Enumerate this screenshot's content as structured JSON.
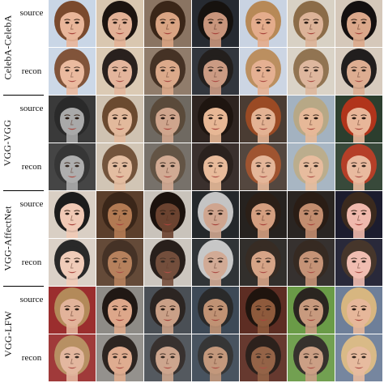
{
  "groups": [
    {
      "label": "CelebA-CelebA",
      "source_label": "source",
      "recon_label": "recon",
      "tiles": [
        {
          "bg": "#c9d6e6",
          "skin": "#e9b69a",
          "hair": "#7a4a2e"
        },
        {
          "bg": "#d9c7b0",
          "skin": "#e2b196",
          "hair": "#1c1410"
        },
        {
          "bg": "#8a7462",
          "skin": "#d9a483",
          "hair": "#3a2618"
        },
        {
          "bg": "#262a31",
          "skin": "#c8957c",
          "hair": "#16120f"
        },
        {
          "bg": "#c9d3e2",
          "skin": "#e4ac8c",
          "hair": "#b78957"
        },
        {
          "bg": "#d8d1c4",
          "skin": "#dcb398",
          "hair": "#8b6c48"
        },
        {
          "bg": "#d5c8ba",
          "skin": "#dba88b",
          "hair": "#141010"
        }
      ]
    },
    {
      "label": "VGG-VGG",
      "source_label": "source",
      "recon_label": "recon",
      "tiles": [
        {
          "bg": "#3a3a3a",
          "skin": "#a9a9a9",
          "hair": "#2a2a2a"
        },
        {
          "bg": "#cfc2b1",
          "skin": "#e2b99c",
          "hair": "#6b4a30"
        },
        {
          "bg": "#6f6961",
          "skin": "#cfa58d",
          "hair": "#5a4a3a"
        },
        {
          "bg": "#2e2420",
          "skin": "#e7b795",
          "hair": "#1e1510"
        },
        {
          "bg": "#4a3c33",
          "skin": "#e3b293",
          "hair": "#9a4a24"
        },
        {
          "bg": "#a3b2c0",
          "skin": "#e6b898",
          "hair": "#b7a886"
        },
        {
          "bg": "#2c3e2e",
          "skin": "#e8b699",
          "hair": "#b1341b"
        }
      ]
    },
    {
      "label": "VGG-AffectNet",
      "source_label": "source",
      "recon_label": "recon",
      "tiles": [
        {
          "bg": "#d9cfc4",
          "skin": "#f0c9b5",
          "hair": "#1c1c1c"
        },
        {
          "bg": "#5b3f2c",
          "skin": "#b27a53",
          "hair": "#3a2619"
        },
        {
          "bg": "#c9c3bb",
          "skin": "#6b4330",
          "hair": "#1b120d"
        },
        {
          "bg": "#24282b",
          "skin": "#cfa58f",
          "hair": "#c4c4c4"
        },
        {
          "bg": "#26221f",
          "skin": "#d49f80",
          "hair": "#2b1f17"
        },
        {
          "bg": "#2a2522",
          "skin": "#c28d6f",
          "hair": "#2a1d15"
        },
        {
          "bg": "#1c1c2e",
          "skin": "#f0b9ad",
          "hair": "#3b2a1e"
        }
      ]
    },
    {
      "label": "VGG-LFW",
      "source_label": "source",
      "recon_label": "recon",
      "tiles": [
        {
          "bg": "#9b2e2e",
          "skin": "#e2b39a",
          "hair": "#b38a5a"
        },
        {
          "bg": "#8e8b86",
          "skin": "#dda78a",
          "hair": "#201814"
        },
        {
          "bg": "#4a4f55",
          "skin": "#caa087",
          "hair": "#2c2522"
        },
        {
          "bg": "#3d4956",
          "skin": "#c09274",
          "hair": "#2a2a2a"
        },
        {
          "bg": "#5d2d23",
          "skin": "#8e5a3c",
          "hair": "#1f140e"
        },
        {
          "bg": "#6a9b47",
          "skin": "#c89a7e",
          "hair": "#2a2520"
        },
        {
          "bg": "#6e7f99",
          "skin": "#e6b79a",
          "hair": "#d7b680"
        }
      ]
    }
  ]
}
